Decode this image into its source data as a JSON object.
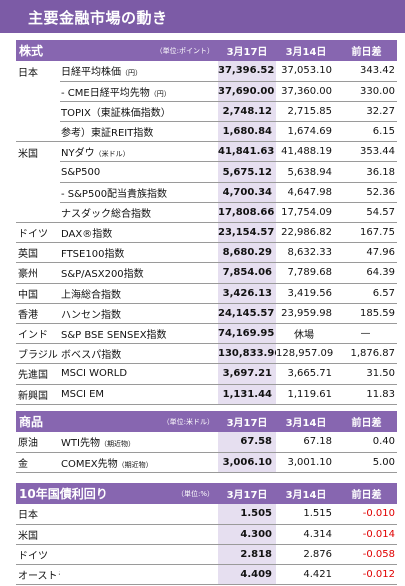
{
  "title": "主要金融市場の動き",
  "stocks": {
    "section": "株式",
    "unit": "（単位:ポイント）",
    "col1": "3月17日",
    "col2": "3月14日",
    "col3": "前日差",
    "rows": [
      {
        "region": "日本",
        "name": "日経平均株価",
        "note": "（円）",
        "v1": "37,396.52",
        "v2": "37,053.10",
        "v3": "343.42"
      },
      {
        "region": "",
        "name": "- CME日経平均先物",
        "note": "（円）",
        "v1": "37,690.00",
        "v2": "37,360.00",
        "v3": "330.00"
      },
      {
        "region": "",
        "name": "TOPIX（東証株価指数）",
        "note": "",
        "v1": "2,748.12",
        "v2": "2,715.85",
        "v3": "32.27"
      },
      {
        "region": "",
        "name": "参考）東証REIT指数",
        "note": "",
        "v1": "1,680.84",
        "v2": "1,674.69",
        "v3": "6.15"
      },
      {
        "region": "米国",
        "name": "NYダウ",
        "note": "（米ドル）",
        "v1": "41,841.63",
        "v2": "41,488.19",
        "v3": "353.44"
      },
      {
        "region": "",
        "name": "S&P500",
        "note": "",
        "v1": "5,675.12",
        "v2": "5,638.94",
        "v3": "36.18"
      },
      {
        "region": "",
        "name": "- S&P500配当貴族指数",
        "note": "",
        "v1": "4,700.34",
        "v2": "4,647.98",
        "v3": "52.36"
      },
      {
        "region": "",
        "name": "ナスダック総合指数",
        "note": "",
        "v1": "17,808.66",
        "v2": "17,754.09",
        "v3": "54.57"
      },
      {
        "region": "ドイツ",
        "name": "DAX®指数",
        "note": "",
        "v1": "23,154.57",
        "v2": "22,986.82",
        "v3": "167.75"
      },
      {
        "region": "英国",
        "name": "FTSE100指数",
        "note": "",
        "v1": "8,680.29",
        "v2": "8,632.33",
        "v3": "47.96"
      },
      {
        "region": "豪州",
        "name": "S&P/ASX200指数",
        "note": "",
        "v1": "7,854.06",
        "v2": "7,789.68",
        "v3": "64.39"
      },
      {
        "region": "中国",
        "name": "上海総合指数",
        "note": "",
        "v1": "3,426.13",
        "v2": "3,419.56",
        "v3": "6.57"
      },
      {
        "region": "香港",
        "name": "ハンセン指数",
        "note": "",
        "v1": "24,145.57",
        "v2": "23,959.98",
        "v3": "185.59"
      },
      {
        "region": "インド",
        "name": "S&P BSE SENSEX指数",
        "note": "",
        "v1": "74,169.95",
        "v2": "休場",
        "v3": "—"
      },
      {
        "region": "ブラジル",
        "name": "ボベスパ指数",
        "note": "",
        "v1": "130,833.96",
        "v2": "128,957.09",
        "v3": "1,876.87"
      },
      {
        "region": "先進国",
        "name": "MSCI WORLD",
        "note": "",
        "v1": "3,697.21",
        "v2": "3,665.71",
        "v3": "31.50"
      },
      {
        "region": "新興国",
        "name": "MSCI EM",
        "note": "",
        "v1": "1,131.44",
        "v2": "1,119.61",
        "v3": "11.83"
      }
    ]
  },
  "commodities": {
    "section": "商品",
    "unit": "（単位:米ドル）",
    "col1": "3月17日",
    "col2": "3月14日",
    "col3": "前日差",
    "rows": [
      {
        "region": "原油",
        "name": "WTI先物",
        "note": "（期近物）",
        "v1": "67.58",
        "v2": "67.18",
        "v3": "0.40"
      },
      {
        "region": "金",
        "name": "COMEX先物",
        "note": "（期近物）",
        "v1": "3,006.10",
        "v2": "3,001.10",
        "v3": "5.00"
      }
    ]
  },
  "bonds": {
    "section": "10年国債利回り",
    "unit": "（単位:%）",
    "col1": "3月17日",
    "col2": "3月14日",
    "col3": "前日差",
    "rows": [
      {
        "region": "日本",
        "v1": "1.505",
        "v2": "1.515",
        "v3": "-0.010"
      },
      {
        "region": "米国",
        "v1": "4.300",
        "v2": "4.314",
        "v3": "-0.014"
      },
      {
        "region": "ドイツ",
        "v1": "2.818",
        "v2": "2.876",
        "v3": "-0.058"
      },
      {
        "region": "オーストラリア",
        "v1": "4.409",
        "v2": "4.421",
        "v3": "-0.012"
      }
    ]
  },
  "colors": {
    "header": "#8766b0",
    "title": "#7c5ba6",
    "highlight": "#e6dff0",
    "negative": "#e00000"
  }
}
